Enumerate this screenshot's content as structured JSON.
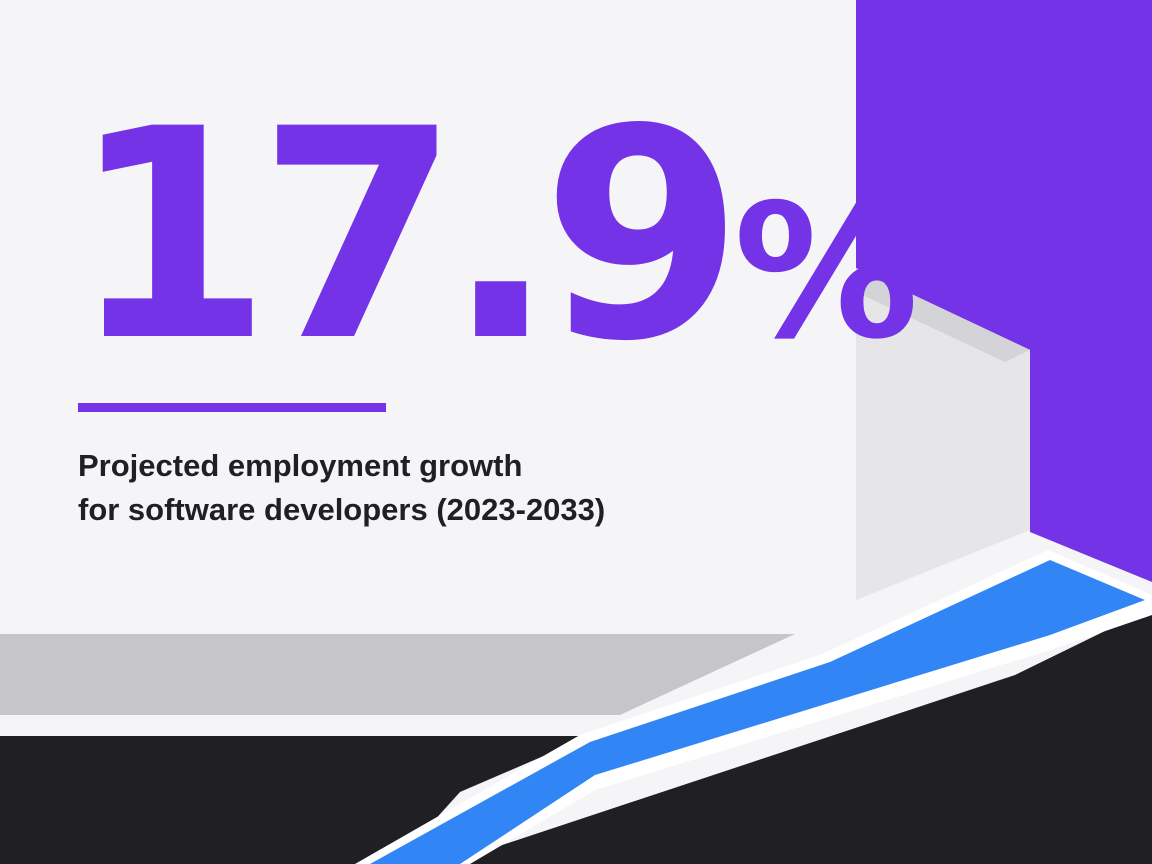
{
  "stat": {
    "value": "17.9",
    "unit": "%",
    "caption_line_1": "Projected employment growth",
    "caption_line_2": "for software developers (2023-2033)"
  },
  "colors": {
    "background": "#f5f5f8",
    "accent_purple": "#7433e6",
    "blue_stripe": "#3185f5",
    "dark": "#202024",
    "grey_ledge": "#c6c6c9",
    "panel_face": "#e6e6e9",
    "panel_edge": "#d4d4d8",
    "text": "#1f1f26"
  }
}
